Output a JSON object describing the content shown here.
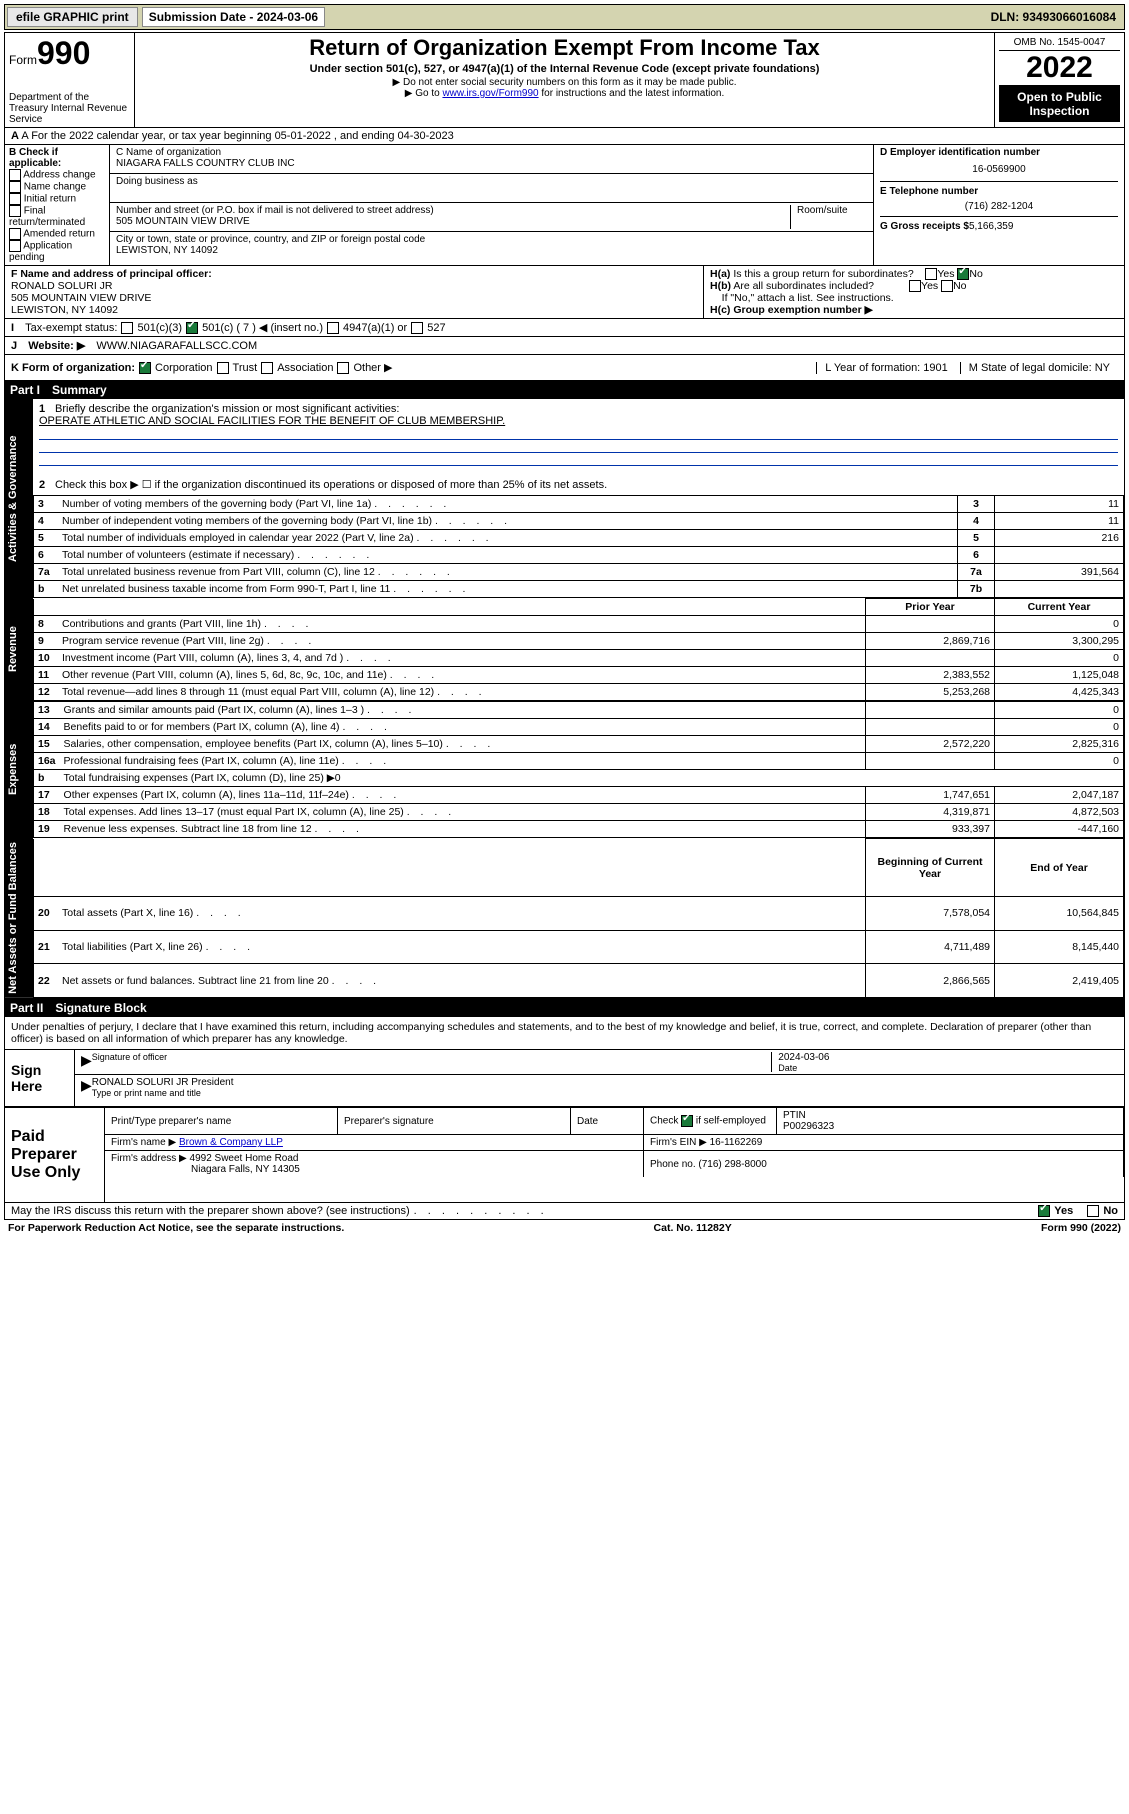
{
  "topbar": {
    "efile": "efile GRAPHIC print",
    "sub_label": "Submission Date - 2024-03-06",
    "dln": "DLN: 93493066016084"
  },
  "header": {
    "form_label": "Form",
    "form_num": "990",
    "dept": "Department of the Treasury Internal Revenue Service",
    "title": "Return of Organization Exempt From Income Tax",
    "sub1": "Under section 501(c), 527, or 4947(a)(1) of the Internal Revenue Code (except private foundations)",
    "sub2": "▶ Do not enter social security numbers on this form as it may be made public.",
    "sub3": "▶ Go to ",
    "sub3_link": "www.irs.gov/Form990",
    "sub3_tail": " for instructions and the latest information.",
    "omb": "OMB No. 1545-0047",
    "year": "2022",
    "open": "Open to Public Inspection"
  },
  "rowA": "A For the 2022 calendar year, or tax year beginning 05-01-2022   , and ending 04-30-2023",
  "boxB": {
    "title": "B Check if applicable:",
    "opts": [
      "Address change",
      "Name change",
      "Initial return",
      "Final return/terminated",
      "Amended return",
      "Application pending"
    ]
  },
  "boxC": {
    "label": "C Name of organization",
    "name": "NIAGARA FALLS COUNTRY CLUB INC",
    "dba": "Doing business as",
    "addr_label": "Number and street (or P.O. box if mail is not delivered to street address)",
    "room": "Room/suite",
    "addr": "505 MOUNTAIN VIEW DRIVE",
    "city_label": "City or town, state or province, country, and ZIP or foreign postal code",
    "city": "LEWISTON, NY  14092"
  },
  "boxD": {
    "label": "D Employer identification number",
    "val": "16-0569900",
    "e_label": "E Telephone number",
    "e_val": "(716) 282-1204",
    "g_label": "G Gross receipts $",
    "g_val": "5,166,359"
  },
  "rowF": {
    "label": "F Name and address of principal officer:",
    "name": "RONALD SOLURI JR",
    "addr": "505 MOUNTAIN VIEW DRIVE",
    "city": "LEWISTON, NY  14092"
  },
  "rowH": {
    "ha": "H(a)  Is this a group return for subordinates?",
    "hb": "H(b)  Are all subordinates included?",
    "hb_note": "If \"No,\" attach a list. See instructions.",
    "hc": "H(c)  Group exemption number ▶"
  },
  "rowI": {
    "label": "Tax-exempt status:",
    "c3": "501(c)(3)",
    "c7": "501(c) ( 7 ) ◀ (insert no.)",
    "a1": "4947(a)(1) or",
    "s527": "527"
  },
  "rowJ": {
    "label": "Website: ▶",
    "val": "WWW.NIAGARAFALLSCC.COM"
  },
  "rowK": {
    "label": "K Form of organization:",
    "opts": [
      "Corporation",
      "Trust",
      "Association",
      "Other ▶"
    ],
    "l": "L Year of formation: 1901",
    "m": "M State of legal domicile: NY"
  },
  "part1": {
    "hdr_num": "Part I",
    "hdr_txt": "Summary",
    "s1_label": "Activities & Governance",
    "s2_label": "Revenue",
    "s3_label": "Expenses",
    "s4_label": "Net Assets or Fund Balances",
    "q1": "Briefly describe the organization's mission or most significant activities:",
    "q1_val": "OPERATE ATHLETIC AND SOCIAL FACILITIES FOR THE BENEFIT OF CLUB MEMBERSHIP.",
    "q2": "Check this box ▶ ☐  if the organization discontinued its operations or disposed of more than 25% of its net assets.",
    "rows_gov": [
      {
        "n": "3",
        "t": "Number of voting members of the governing body (Part VI, line 1a)",
        "box": "3",
        "v": "11"
      },
      {
        "n": "4",
        "t": "Number of independent voting members of the governing body (Part VI, line 1b)",
        "box": "4",
        "v": "11"
      },
      {
        "n": "5",
        "t": "Total number of individuals employed in calendar year 2022 (Part V, line 2a)",
        "box": "5",
        "v": "216"
      },
      {
        "n": "6",
        "t": "Total number of volunteers (estimate if necessary)",
        "box": "6",
        "v": ""
      },
      {
        "n": "7a",
        "t": "Total unrelated business revenue from Part VIII, column (C), line 12",
        "box": "7a",
        "v": "391,564"
      },
      {
        "n": "b",
        "t": "Net unrelated business taxable income from Form 990-T, Part I, line 11",
        "box": "7b",
        "v": ""
      }
    ],
    "col_prior": "Prior Year",
    "col_curr": "Current Year",
    "rows_rev": [
      {
        "n": "8",
        "t": "Contributions and grants (Part VIII, line 1h)",
        "p": "",
        "c": "0"
      },
      {
        "n": "9",
        "t": "Program service revenue (Part VIII, line 2g)",
        "p": "2,869,716",
        "c": "3,300,295"
      },
      {
        "n": "10",
        "t": "Investment income (Part VIII, column (A), lines 3, 4, and 7d )",
        "p": "",
        "c": "0"
      },
      {
        "n": "11",
        "t": "Other revenue (Part VIII, column (A), lines 5, 6d, 8c, 9c, 10c, and 11e)",
        "p": "2,383,552",
        "c": "1,125,048"
      },
      {
        "n": "12",
        "t": "Total revenue—add lines 8 through 11 (must equal Part VIII, column (A), line 12)",
        "p": "5,253,268",
        "c": "4,425,343"
      }
    ],
    "rows_exp": [
      {
        "n": "13",
        "t": "Grants and similar amounts paid (Part IX, column (A), lines 1–3 )",
        "p": "",
        "c": "0"
      },
      {
        "n": "14",
        "t": "Benefits paid to or for members (Part IX, column (A), line 4)",
        "p": "",
        "c": "0"
      },
      {
        "n": "15",
        "t": "Salaries, other compensation, employee benefits (Part IX, column (A), lines 5–10)",
        "p": "2,572,220",
        "c": "2,825,316"
      },
      {
        "n": "16a",
        "t": "Professional fundraising fees (Part IX, column (A), line 11e)",
        "p": "",
        "c": "0"
      },
      {
        "n": "b",
        "t": "Total fundraising expenses (Part IX, column (D), line 25) ▶0",
        "p": "—",
        "c": "—"
      },
      {
        "n": "17",
        "t": "Other expenses (Part IX, column (A), lines 11a–11d, 11f–24e)",
        "p": "1,747,651",
        "c": "2,047,187"
      },
      {
        "n": "18",
        "t": "Total expenses. Add lines 13–17 (must equal Part IX, column (A), line 25)",
        "p": "4,319,871",
        "c": "4,872,503"
      },
      {
        "n": "19",
        "t": "Revenue less expenses. Subtract line 18 from line 12",
        "p": "933,397",
        "c": "-447,160"
      }
    ],
    "col_beg": "Beginning of Current Year",
    "col_end": "End of Year",
    "rows_net": [
      {
        "n": "20",
        "t": "Total assets (Part X, line 16)",
        "p": "7,578,054",
        "c": "10,564,845"
      },
      {
        "n": "21",
        "t": "Total liabilities (Part X, line 26)",
        "p": "4,711,489",
        "c": "8,145,440"
      },
      {
        "n": "22",
        "t": "Net assets or fund balances. Subtract line 21 from line 20",
        "p": "2,866,565",
        "c": "2,419,405"
      }
    ]
  },
  "part2": {
    "hdr_num": "Part II",
    "hdr_txt": "Signature Block",
    "decl": "Under penalties of perjury, I declare that I have examined this return, including accompanying schedules and statements, and to the best of my knowledge and belief, it is true, correct, and complete. Declaration of preparer (other than officer) is based on all information of which preparer has any knowledge.",
    "sign_here": "Sign Here",
    "sig_of": "Signature of officer",
    "sig_date": "Date",
    "sig_date_val": "2024-03-06",
    "sig_name": "RONALD SOLURI JR  President",
    "sig_name_lbl": "Type or print name and title",
    "paid": "Paid Preparer Use Only",
    "pt_name": "Print/Type preparer's name",
    "pt_sig": "Preparer's signature",
    "pt_date": "Date",
    "pt_check": "Check ☑ if self-employed",
    "ptin_lbl": "PTIN",
    "ptin": "P00296323",
    "firm_name_lbl": "Firm's name    ▶",
    "firm_name": "Brown & Company LLP",
    "firm_ein_lbl": "Firm's EIN ▶",
    "firm_ein": "16-1162269",
    "firm_addr_lbl": "Firm's address ▶",
    "firm_addr": "4992 Sweet Home Road",
    "firm_city": "Niagara Falls, NY  14305",
    "phone_lbl": "Phone no.",
    "phone": "(716) 298-8000",
    "irs_q": "May the IRS discuss this return with the preparer shown above? (see instructions)",
    "yes": "Yes",
    "no": "No"
  },
  "footer": {
    "pra": "For Paperwork Reduction Act Notice, see the separate instructions.",
    "cat": "Cat. No. 11282Y",
    "form": "Form 990 (2022)"
  }
}
